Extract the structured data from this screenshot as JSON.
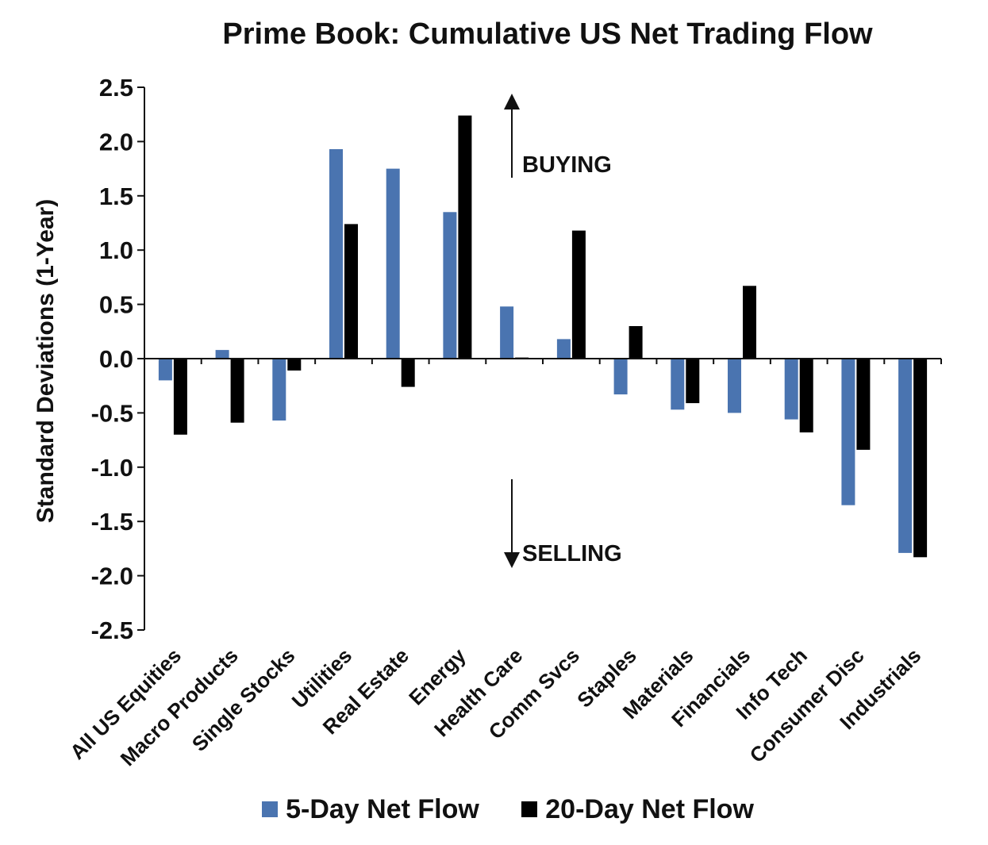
{
  "chart_data": {
    "type": "bar",
    "title": "Prime Book: Cumulative US Net Trading Flow",
    "ylabel": "Standard Deviations (1-Year)",
    "xlabel": "",
    "ylim": [
      -2.5,
      2.5
    ],
    "yticks": [
      "2.5",
      "2.0",
      "1.5",
      "1.0",
      "0.5",
      "0.0",
      "-0.5",
      "-1.0",
      "-1.5",
      "-2.0",
      "-2.5"
    ],
    "categories": [
      "All US Equities",
      "Macro Products",
      "Single Stocks",
      "Utilities",
      "Real Estate",
      "Energy",
      "Health Care",
      "Comm Svcs",
      "Staples",
      "Materials",
      "Financials",
      "Info Tech",
      "Consumer Disc",
      "Industrials"
    ],
    "series": [
      {
        "name": "5-Day Net Flow",
        "color": "#4a74b0",
        "values": [
          -0.2,
          0.08,
          -0.57,
          1.93,
          1.75,
          1.35,
          0.48,
          0.18,
          -0.33,
          -0.47,
          -0.5,
          -0.56,
          -1.35,
          -1.79
        ]
      },
      {
        "name": "20-Day Net Flow",
        "color": "#000000",
        "values": [
          -0.7,
          -0.59,
          -0.11,
          1.24,
          -0.26,
          2.24,
          0.01,
          1.18,
          0.3,
          -0.41,
          0.67,
          -0.68,
          -0.84,
          -1.83
        ]
      }
    ],
    "annotations": {
      "up": "BUYING",
      "down": "SELLING"
    },
    "grid": false,
    "legend_position": "bottom"
  }
}
